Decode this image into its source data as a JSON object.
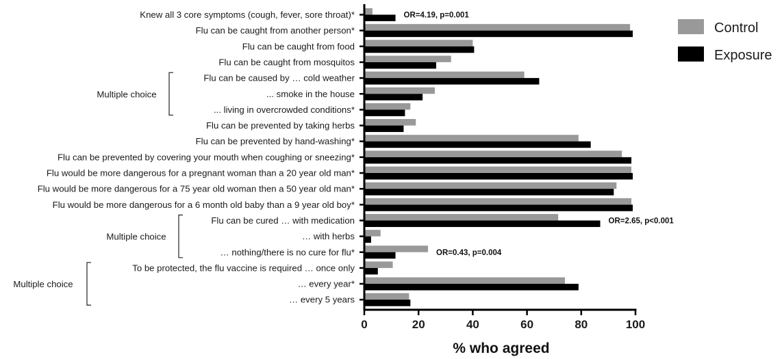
{
  "chart_data": {
    "type": "bar",
    "orientation": "horizontal",
    "xlabel": "% who agreed",
    "xlim": [
      0,
      100
    ],
    "xticks": [
      0,
      20,
      40,
      60,
      80,
      100
    ],
    "categories": [
      "Knew all 3 core symptoms (cough, fever, sore throat)*",
      "Flu can be caught from another person*",
      "Flu can be caught from food",
      "Flu can be caught from mosquitos",
      "Flu can be caused by … cold weather",
      "... smoke in the house",
      "... living in overcrowded conditions*",
      "Flu can be prevented by taking herbs",
      "Flu can be prevented by hand-washing*",
      "Flu can be prevented by covering your mouth when coughing or sneezing*",
      "Flu would be more dangerous for a pregnant woman than a 20 year old man*",
      "Flu would be more dangerous for a 75 year old woman then a 50 year old man*",
      "Flu would be more dangerous for a 6 month old baby than a 9 year old boy*",
      "Flu can be cured … with medication",
      "… with herbs",
      "… nothing/there is no cure for flu*",
      "To be protected, the flu vaccine is required … once only",
      "… every year*",
      "… every 5 years"
    ],
    "series": [
      {
        "name": "Control",
        "color": "#999999",
        "values": [
          3,
          98,
          40,
          32,
          59,
          26,
          17,
          19,
          79,
          95,
          98.5,
          93,
          98.5,
          71.5,
          6,
          23.5,
          10.5,
          74,
          16.5
        ]
      },
      {
        "name": "Exposure",
        "color": "#000000",
        "values": [
          11.5,
          99,
          40.5,
          26.5,
          64.5,
          21.5,
          15,
          14.5,
          83.5,
          98.5,
          99,
          92,
          99,
          87,
          2.5,
          11.5,
          5,
          79,
          17
        ]
      }
    ],
    "legend": {
      "position": "top-right"
    },
    "annotations": [
      {
        "text": "OR=4.19, p=0.001",
        "category_index": 0
      },
      {
        "text": "OR=2.65, p<0.001",
        "category_index": 13
      },
      {
        "text": "OR=0.43, p=0.004",
        "category_index": 15
      }
    ],
    "groups": [
      {
        "label": "Multiple choice",
        "from": 4,
        "to": 6
      },
      {
        "label": "Multiple choice",
        "from": 13,
        "to": 15
      },
      {
        "label": "Multiple choice",
        "from": 16,
        "to": 18
      }
    ]
  }
}
